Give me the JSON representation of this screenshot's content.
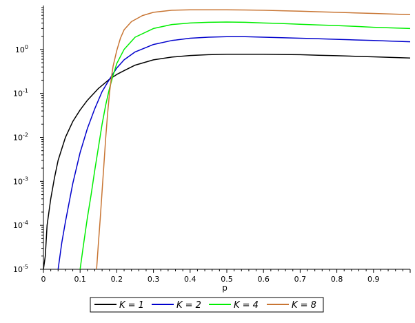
{
  "chart_data": {
    "type": "line",
    "title": "",
    "xlabel": "p",
    "ylabel": "",
    "xlim": [
      0,
      1
    ],
    "ylim": [
      1e-05,
      10
    ],
    "yscale": "log",
    "grid": false,
    "legend_position": "bottom",
    "x_ticks": [
      "0",
      "0.1",
      "0.2",
      "0.3",
      "0.4",
      "0.5",
      "0.6",
      "0.7",
      "0.8",
      "0.9"
    ],
    "y_ticks": [
      {
        "value": 1e-05,
        "base": "10",
        "exp": "-5"
      },
      {
        "value": 0.0001,
        "base": "10",
        "exp": "-4"
      },
      {
        "value": 0.001,
        "base": "10",
        "exp": "-3"
      },
      {
        "value": 0.01,
        "base": "10",
        "exp": "-2"
      },
      {
        "value": 0.1,
        "base": "10",
        "exp": "-1"
      },
      {
        "value": 1,
        "base": "10",
        "exp": "0"
      }
    ],
    "series": [
      {
        "name": "K = 1",
        "color": "#000000",
        "x": [
          0.0,
          0.005,
          0.01,
          0.02,
          0.03,
          0.04,
          0.05,
          0.06,
          0.08,
          0.1,
          0.12,
          0.15,
          0.18,
          0.2,
          0.22,
          0.25,
          0.3,
          0.35,
          0.4,
          0.45,
          0.5,
          0.55,
          0.6,
          0.65,
          0.7,
          0.75,
          0.8,
          0.85,
          0.9,
          0.95,
          1.0
        ],
        "y": [
          1e-05,
          2e-05,
          0.0001,
          0.0004,
          0.0012,
          0.003,
          0.0055,
          0.01,
          0.023,
          0.042,
          0.07,
          0.13,
          0.21,
          0.27,
          0.33,
          0.44,
          0.58,
          0.67,
          0.73,
          0.76,
          0.78,
          0.78,
          0.78,
          0.77,
          0.76,
          0.74,
          0.72,
          0.7,
          0.68,
          0.66,
          0.64
        ]
      },
      {
        "name": "K = 2",
        "color": "#0000cc",
        "x": [
          0.04,
          0.05,
          0.06,
          0.08,
          0.1,
          0.12,
          0.14,
          0.16,
          0.18,
          0.2,
          0.22,
          0.25,
          0.3,
          0.35,
          0.4,
          0.45,
          0.5,
          0.55,
          0.6,
          0.65,
          0.7,
          0.75,
          0.8,
          0.85,
          0.9,
          0.95,
          1.0
        ],
        "y": [
          1e-05,
          4e-05,
          0.00012,
          0.0009,
          0.0045,
          0.016,
          0.045,
          0.11,
          0.21,
          0.38,
          0.58,
          0.88,
          1.3,
          1.6,
          1.8,
          1.9,
          1.95,
          1.95,
          1.9,
          1.85,
          1.8,
          1.75,
          1.7,
          1.65,
          1.6,
          1.55,
          1.5
        ]
      },
      {
        "name": "K = 4",
        "color": "#00ee00",
        "x": [
          0.1,
          0.11,
          0.12,
          0.13,
          0.14,
          0.15,
          0.16,
          0.17,
          0.18,
          0.19,
          0.2,
          0.22,
          0.25,
          0.3,
          0.35,
          0.4,
          0.45,
          0.5,
          0.55,
          0.6,
          0.65,
          0.7,
          0.75,
          0.8,
          0.85,
          0.9,
          0.95,
          1.0
        ],
        "y": [
          1e-05,
          4e-05,
          0.00015,
          0.0005,
          0.0018,
          0.006,
          0.02,
          0.055,
          0.13,
          0.26,
          0.48,
          1.0,
          1.9,
          3.0,
          3.7,
          4.0,
          4.15,
          4.2,
          4.15,
          4.0,
          3.9,
          3.75,
          3.6,
          3.5,
          3.35,
          3.2,
          3.1,
          3.0
        ]
      },
      {
        "name": "K = 8",
        "color": "#c87533",
        "x": [
          0.145,
          0.15,
          0.155,
          0.16,
          0.165,
          0.17,
          0.175,
          0.18,
          0.185,
          0.19,
          0.2,
          0.21,
          0.22,
          0.24,
          0.27,
          0.3,
          0.35,
          0.4,
          0.45,
          0.5,
          0.55,
          0.6,
          0.65,
          0.7,
          0.75,
          0.8,
          0.85,
          0.9,
          0.95,
          1.0
        ],
        "y": [
          1e-05,
          4e-05,
          0.00015,
          0.0006,
          0.0025,
          0.01,
          0.035,
          0.1,
          0.22,
          0.42,
          0.95,
          1.8,
          2.8,
          4.3,
          5.9,
          7.0,
          7.8,
          8.0,
          8.0,
          8.0,
          7.9,
          7.8,
          7.6,
          7.4,
          7.2,
          7.0,
          6.8,
          6.6,
          6.4,
          6.2
        ]
      }
    ]
  }
}
